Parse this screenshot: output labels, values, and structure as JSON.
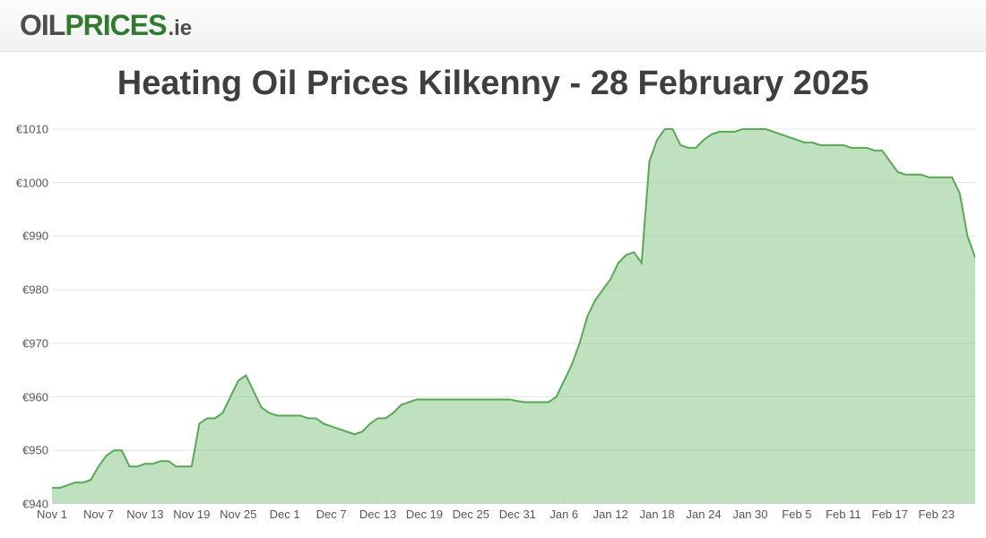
{
  "logo": {
    "seg1": "OIL",
    "seg2": "PRICES",
    "seg3": ".ie"
  },
  "chart": {
    "type": "area",
    "title": "Heating Oil Prices Kilkenny - 28 February 2025",
    "title_fontsize": 38,
    "title_color": "#3f3f3f",
    "background_color": "#ffffff",
    "grid_color": "#e6e6e6",
    "axis_color": "#cccccc",
    "label_color": "#555555",
    "label_fontsize": 13,
    "line_color": "#5aa856",
    "fill_color": "#8bc98a",
    "fill_opacity": 0.55,
    "line_width": 2,
    "ylim": [
      940,
      1012
    ],
    "yticks": [
      940,
      950,
      960,
      970,
      980,
      990,
      1000,
      1010
    ],
    "ytick_prefix": "€",
    "x_categories": [
      "Nov 1",
      "Nov 7",
      "Nov 13",
      "Nov 19",
      "Nov 25",
      "Dec 1",
      "Dec 7",
      "Dec 13",
      "Dec 19",
      "Dec 25",
      "Dec 31",
      "Jan 6",
      "Jan 12",
      "Jan 18",
      "Jan 24",
      "Jan 30",
      "Feb 5",
      "Feb 11",
      "Feb 17",
      "Feb 23"
    ],
    "x_tick_step_days": 6,
    "n_days": 120,
    "values": [
      943,
      943,
      943.5,
      944,
      944,
      944.5,
      947,
      949,
      950,
      950,
      947,
      947,
      947.5,
      947.5,
      948,
      948,
      947,
      947,
      947,
      955,
      956,
      956,
      957,
      960,
      963,
      964,
      961,
      958,
      957,
      956.5,
      956.5,
      956.5,
      956.5,
      956,
      956,
      955,
      954.5,
      954,
      953.5,
      953,
      953.5,
      955,
      956,
      956,
      957,
      958.5,
      959,
      959.5,
      959.5,
      959.5,
      959.5,
      959.5,
      959.5,
      959.5,
      959.5,
      959.5,
      959.5,
      959.5,
      959.5,
      959.5,
      959.2,
      959,
      959,
      959,
      959,
      960,
      963,
      966,
      970,
      975,
      978,
      980,
      982,
      985,
      986.5,
      987,
      985,
      1004,
      1008,
      1010,
      1010,
      1007,
      1006.5,
      1006.5,
      1008,
      1009,
      1009.5,
      1009.5,
      1009.5,
      1010,
      1010,
      1010,
      1010,
      1009.5,
      1009,
      1008.5,
      1008,
      1007.5,
      1007.5,
      1007,
      1007,
      1007,
      1007,
      1006.5,
      1006.5,
      1006.5,
      1006,
      1006,
      1004,
      1002,
      1001.5,
      1001.5,
      1001.5,
      1001,
      1001,
      1001,
      1001,
      998,
      990,
      986
    ]
  }
}
